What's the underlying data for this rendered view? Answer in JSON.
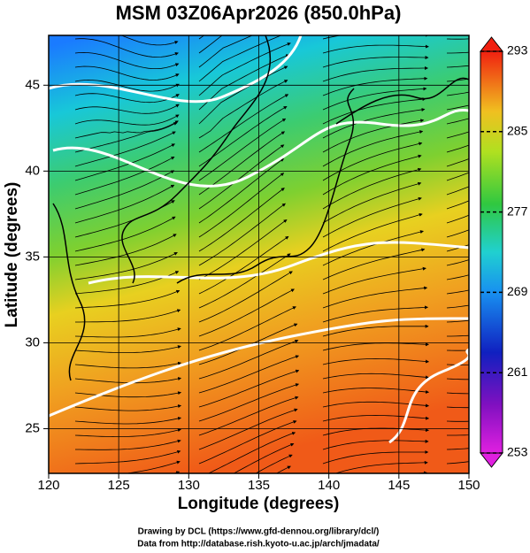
{
  "title": "MSM 03Z06Apr2026 (850.0hPa)",
  "map": {
    "xlabel": "Longitude (degrees)",
    "ylabel": "Latitude  (degrees)",
    "xlim": [
      120,
      150
    ],
    "ylim": [
      22.4,
      47.9
    ],
    "xticks": [
      120,
      125,
      130,
      135,
      140,
      145,
      150
    ],
    "yticks": [
      25,
      30,
      35,
      40,
      45
    ]
  },
  "colorbar": {
    "range": [
      253,
      293
    ],
    "ticks": [
      253,
      261,
      269,
      277,
      285,
      293
    ]
  },
  "credits": [
    "Drawing by DCL (https://www.gfd-dennou.org/library/dcl/)",
    "Data from http://database.rish.kyoto-u.ac.jp/arch/jmadata/"
  ]
}
